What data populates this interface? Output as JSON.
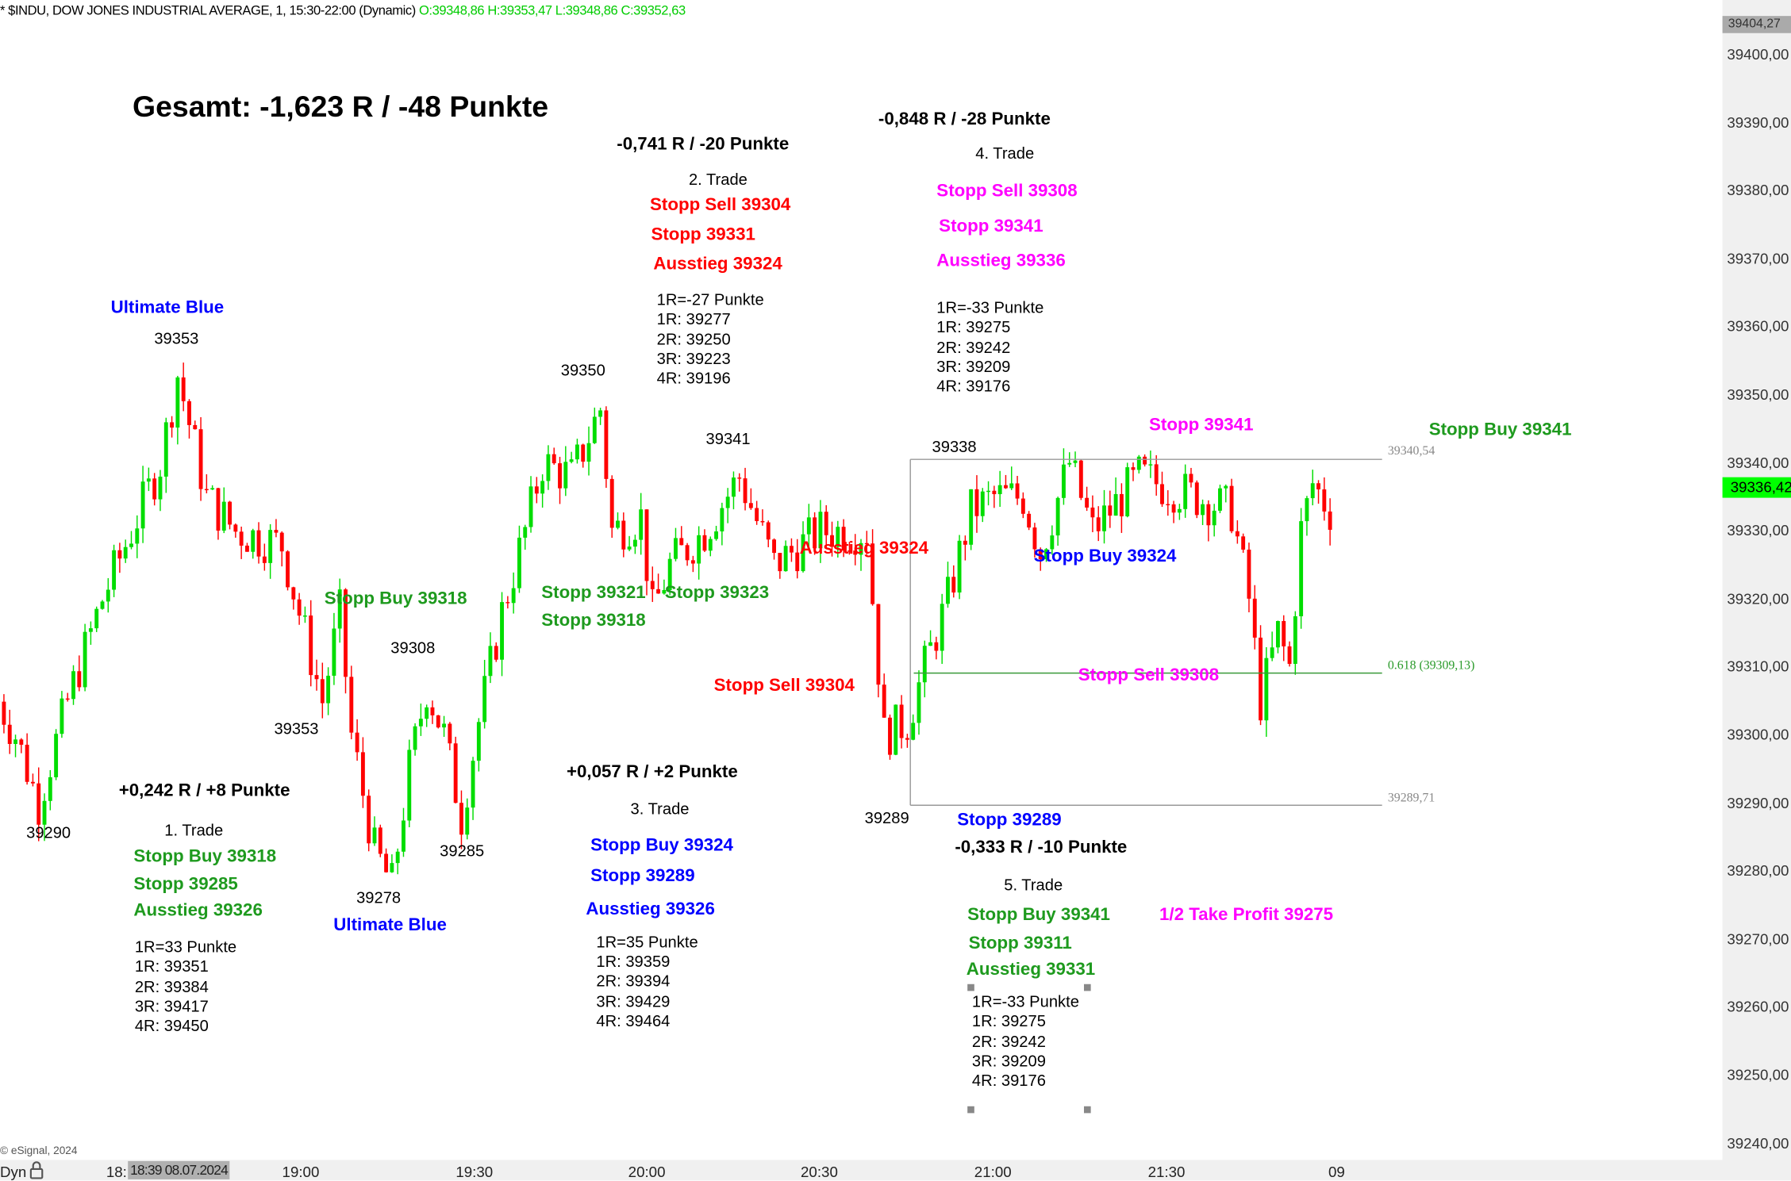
{
  "header": {
    "title": "* $INDU, DOW JONES INDUSTRIAL AVERAGE, 1, 15:30-22:00 (Dynamic)",
    "ohlc": "O:39348,86 H:39353,47 L:39348,86 C:39352,63"
  },
  "price_axis": {
    "ticks": [
      "39400,00",
      "39390,00",
      "39380,00",
      "39370,00",
      "39360,00",
      "39350,00",
      "39340,00",
      "39330,00",
      "39320,00",
      "39310,00",
      "39300,00",
      "39290,00",
      "39280,00",
      "39270,00",
      "39260,00",
      "39250,00",
      "39240,00"
    ],
    "high_label": "39404,27",
    "last_price": "39336,42",
    "last_color": "#00ff00"
  },
  "time_axis": {
    "ticks": [
      "18:",
      "19:00",
      "19:30",
      "20:00",
      "20:30",
      "21:00",
      "21:30",
      "09"
    ],
    "cursor_label": "18:39 08.07.2024",
    "mode_label": "Dyn"
  },
  "footer": {
    "copyright": "© eSignal, 2024"
  },
  "colors": {
    "up": "#00dd00",
    "down": "#ff0000",
    "red": "#ff0000",
    "green": "#1e9a1e",
    "blue": "#0000ff",
    "magenta": "#ff00ff"
  },
  "chart_data": {
    "type": "candlestick",
    "title": "",
    "xlabel": "",
    "ylabel": "",
    "ylim": [
      39238,
      39404.27
    ],
    "grid": false,
    "price_path": [
      [
        "18:08",
        39305
      ],
      [
        "18:11",
        39300
      ],
      [
        "18:15",
        39290
      ],
      [
        "18:20",
        39305
      ],
      [
        "18:26",
        39320
      ],
      [
        "18:31",
        39330
      ],
      [
        "18:36",
        39340
      ],
      [
        "18:39",
        39353
      ],
      [
        "18:44",
        39335
      ],
      [
        "18:49",
        39330
      ],
      [
        "18:57",
        39328
      ],
      [
        "19:00",
        39318
      ],
      [
        "19:04",
        39305
      ],
      [
        "19:07",
        39318
      ],
      [
        "19:09",
        39300
      ],
      [
        "19:13",
        39283
      ],
      [
        "19:16",
        39278
      ],
      [
        "19:19",
        39295
      ],
      [
        "19:22",
        39307
      ],
      [
        "19:25",
        39300
      ],
      [
        "19:28",
        39288
      ],
      [
        "19:31",
        39302
      ],
      [
        "19:35",
        39318
      ],
      [
        "19:39",
        39330
      ],
      [
        "19:42",
        39340
      ],
      [
        "19:47",
        39338
      ],
      [
        "19:52",
        39348
      ],
      [
        "19:54",
        39330
      ],
      [
        "19:59",
        39332
      ],
      [
        "20:01",
        39318
      ],
      [
        "20:04",
        39325
      ],
      [
        "20:10",
        39330
      ],
      [
        "20:16",
        39338
      ],
      [
        "20:22",
        39325
      ],
      [
        "20:30",
        39330
      ],
      [
        "20:38",
        39330
      ],
      [
        "20:41",
        39300
      ],
      [
        "20:45",
        39302
      ],
      [
        "20:48",
        39310
      ],
      [
        "20:52",
        39320
      ],
      [
        "20:56",
        39333
      ],
      [
        "21:00",
        39335
      ],
      [
        "21:05",
        39335
      ],
      [
        "21:08",
        39327
      ],
      [
        "21:13",
        39340
      ],
      [
        "21:17",
        39330
      ],
      [
        "21:25",
        39338
      ],
      [
        "21:35",
        39335
      ],
      [
        "21:41",
        39333
      ],
      [
        "21:44",
        39320
      ],
      [
        "21:46",
        39305
      ],
      [
        "21:49",
        39315
      ],
      [
        "21:51",
        39310
      ],
      [
        "21:53",
        39330
      ],
      [
        "21:55",
        39337
      ],
      [
        "21:58",
        39333
      ]
    ],
    "levels": [
      {
        "label": "39340,54",
        "value": 39340.54
      },
      {
        "label": "0.618 (39309,13)",
        "value": 39309.13
      },
      {
        "label": "39289,71",
        "value": 39289.71
      }
    ]
  },
  "annotations": [
    {
      "text": "Gesamt: -1,623 R / -48 Punkte",
      "color": "black"
    },
    {
      "text": "-0,741 R / -20 Punkte",
      "color": "black"
    },
    {
      "text": "2. Trade",
      "color": "black"
    },
    {
      "text": "Stopp Sell 39304",
      "color": "red"
    },
    {
      "text": "Stopp 39331",
      "color": "red"
    },
    {
      "text": "Ausstieg 39324",
      "color": "red"
    },
    {
      "text": "1R=-27 Punkte",
      "color": "black"
    },
    {
      "text": "1R: 39277",
      "color": "black"
    },
    {
      "text": "2R: 39250",
      "color": "black"
    },
    {
      "text": "3R: 39223",
      "color": "black"
    },
    {
      "text": "4R: 39196",
      "color": "black"
    },
    {
      "text": "-0,848 R / -28 Punkte",
      "color": "black"
    },
    {
      "text": "4. Trade",
      "color": "black"
    },
    {
      "text": "Stopp Sell 39308",
      "color": "magenta"
    },
    {
      "text": "Stopp 39341",
      "color": "magenta"
    },
    {
      "text": "Ausstieg 39336",
      "color": "magenta"
    },
    {
      "text": "1R=-33 Punkte",
      "color": "black"
    },
    {
      "text": "1R: 39275",
      "color": "black"
    },
    {
      "text": "2R: 39242",
      "color": "black"
    },
    {
      "text": "3R: 39209",
      "color": "black"
    },
    {
      "text": "4R: 39176",
      "color": "black"
    },
    {
      "text": "Ultimate Blue",
      "color": "blue"
    },
    {
      "text": "39353",
      "color": "black"
    },
    {
      "text": "39350",
      "color": "black"
    },
    {
      "text": "39341",
      "color": "black"
    },
    {
      "text": "39338",
      "color": "black"
    },
    {
      "text": "Stopp 39341",
      "color": "magenta"
    },
    {
      "text": "Stopp Buy 39341",
      "color": "green"
    },
    {
      "text": "Ausstieg 39324",
      "color": "red"
    },
    {
      "text": "Stopp Buy 39324",
      "color": "blue"
    },
    {
      "text": "Stopp Buy 39318",
      "color": "green"
    },
    {
      "text": "Stopp 39321",
      "color": "green"
    },
    {
      "text": "Stopp 39323",
      "color": "green"
    },
    {
      "text": "Stopp 39318",
      "color": "green"
    },
    {
      "text": "39308",
      "color": "black"
    },
    {
      "text": "Stopp Sell 39304",
      "color": "red"
    },
    {
      "text": "Stopp Sell 39308",
      "color": "magenta"
    },
    {
      "text": "39353",
      "color": "black"
    },
    {
      "text": "+0,242 R / +8 Punkte",
      "color": "black"
    },
    {
      "text": "+0,057 R / +2 Punkte",
      "color": "black"
    },
    {
      "text": "3. Trade",
      "color": "black"
    },
    {
      "text": "39289",
      "color": "black"
    },
    {
      "text": "Stopp 39289",
      "color": "blue"
    },
    {
      "text": "-0,333 R / -10 Punkte",
      "color": "black"
    },
    {
      "text": "39290",
      "color": "black"
    },
    {
      "text": "1. Trade",
      "color": "black"
    },
    {
      "text": "Stopp Buy 39318",
      "color": "green"
    },
    {
      "text": "Stopp 39285",
      "color": "green"
    },
    {
      "text": "Ausstieg 39326",
      "color": "green"
    },
    {
      "text": "Stopp Buy 39324",
      "color": "blue"
    },
    {
      "text": "Stopp 39289",
      "color": "blue"
    },
    {
      "text": "Ausstieg 39326",
      "color": "blue"
    },
    {
      "text": "39285",
      "color": "black"
    },
    {
      "text": "39278",
      "color": "black"
    },
    {
      "text": "Ultimate Blue",
      "color": "blue"
    },
    {
      "text": "5. Trade",
      "color": "black"
    },
    {
      "text": "Stopp Buy 39341",
      "color": "green"
    },
    {
      "text": "Stopp 39311",
      "color": "green"
    },
    {
      "text": "Ausstieg 39331",
      "color": "green"
    },
    {
      "text": "1/2 Take Profit 39275",
      "color": "magenta"
    },
    {
      "text": "1R=33 Punkte",
      "color": "black"
    },
    {
      "text": "1R: 39351",
      "color": "black"
    },
    {
      "text": "2R: 39384",
      "color": "black"
    },
    {
      "text": "3R: 39417",
      "color": "black"
    },
    {
      "text": "4R: 39450",
      "color": "black"
    },
    {
      "text": "1R=35 Punkte",
      "color": "black"
    },
    {
      "text": "1R: 39359",
      "color": "black"
    },
    {
      "text": "2R: 39394",
      "color": "black"
    },
    {
      "text": "3R: 39429",
      "color": "black"
    },
    {
      "text": "4R: 39464",
      "color": "black"
    },
    {
      "text": "1R=-33 Punkte",
      "color": "black"
    },
    {
      "text": "1R: 39275",
      "color": "black"
    },
    {
      "text": "2R: 39242",
      "color": "black"
    },
    {
      "text": "3R: 39209",
      "color": "black"
    },
    {
      "text": "4R: 39176",
      "color": "black"
    }
  ]
}
